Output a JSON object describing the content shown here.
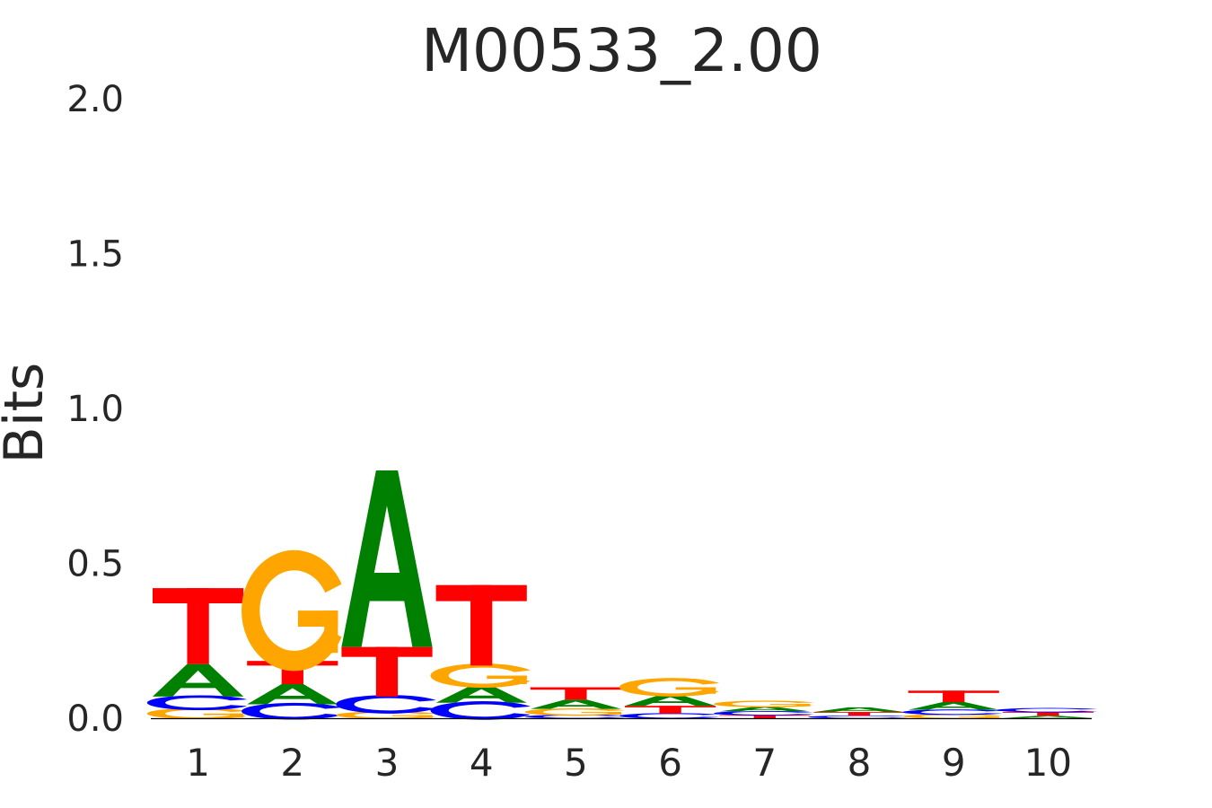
{
  "chart_data": {
    "type": "sequence-logo",
    "title": "M00533_2.00",
    "ylabel": "Bits",
    "xlabel": "",
    "ylim": [
      0,
      2.0
    ],
    "yticks": [
      "0.0",
      "0.5",
      "1.0",
      "1.5",
      "2.0"
    ],
    "grid": false,
    "positions": [
      "1",
      "2",
      "3",
      "4",
      "5",
      "6",
      "7",
      "8",
      "9",
      "10"
    ],
    "colors": {
      "A": "#008000",
      "C": "#0000ff",
      "G": "#ffa500",
      "T": "#ff0000"
    },
    "columns": [
      [
        {
          "base": "G",
          "bits": 0.03
        },
        {
          "base": "C",
          "bits": 0.04
        },
        {
          "base": "A",
          "bits": 0.105
        },
        {
          "base": "T",
          "bits": 0.245
        }
      ],
      [
        {
          "base": "C",
          "bits": 0.045
        },
        {
          "base": "A",
          "bits": 0.065
        },
        {
          "base": "T",
          "bits": 0.075
        },
        {
          "base": "G",
          "bits": 0.325
        }
      ],
      [
        {
          "base": "G",
          "bits": 0.02
        },
        {
          "base": "C",
          "bits": 0.05
        },
        {
          "base": "T",
          "bits": 0.16
        },
        {
          "base": "A",
          "bits": 0.57
        }
      ],
      [
        {
          "base": "C",
          "bits": 0.05
        },
        {
          "base": "A",
          "bits": 0.055
        },
        {
          "base": "G",
          "bits": 0.065
        },
        {
          "base": "T",
          "bits": 0.26
        }
      ],
      [
        {
          "base": "C",
          "bits": 0.01
        },
        {
          "base": "G",
          "bits": 0.02
        },
        {
          "base": "A",
          "bits": 0.03
        },
        {
          "base": "T",
          "bits": 0.04
        }
      ],
      [
        {
          "base": "C",
          "bits": 0.015
        },
        {
          "base": "T",
          "bits": 0.025
        },
        {
          "base": "A",
          "bits": 0.035
        },
        {
          "base": "G",
          "bits": 0.05
        }
      ],
      [
        {
          "base": "T",
          "bits": 0.01
        },
        {
          "base": "C",
          "bits": 0.012
        },
        {
          "base": "A",
          "bits": 0.015
        },
        {
          "base": "G",
          "bits": 0.018
        }
      ],
      [
        {
          "base": "C",
          "bits": 0.008
        },
        {
          "base": "T",
          "bits": 0.012
        },
        {
          "base": "A",
          "bits": 0.015
        }
      ],
      [
        {
          "base": "G",
          "bits": 0.012
        },
        {
          "base": "C",
          "bits": 0.015
        },
        {
          "base": "A",
          "bits": 0.025
        },
        {
          "base": "T",
          "bits": 0.037
        }
      ],
      [
        {
          "base": "A",
          "bits": 0.008
        },
        {
          "base": "T",
          "bits": 0.012
        },
        {
          "base": "C",
          "bits": 0.012
        }
      ]
    ]
  }
}
